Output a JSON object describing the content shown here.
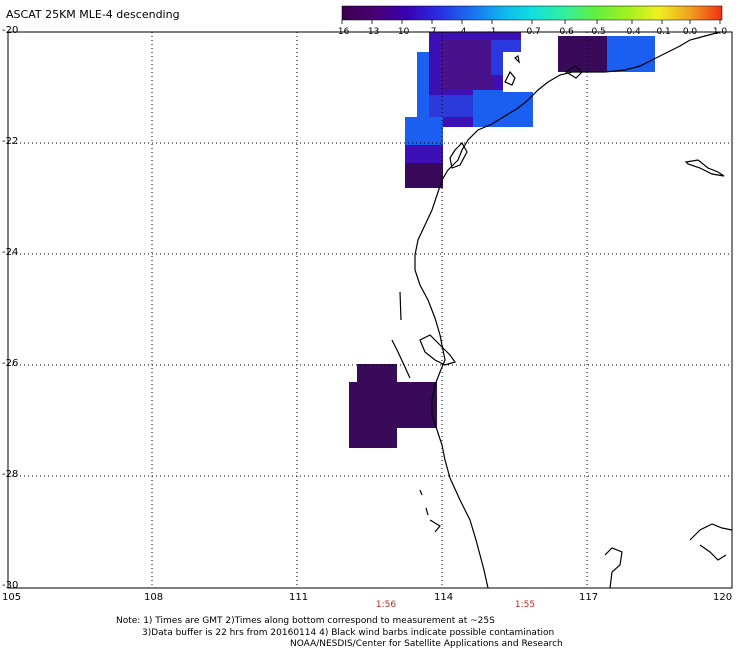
{
  "title": "ASCAT 25KM MLE-4 descending",
  "colorbar": {
    "labels": [
      "-16",
      "-13",
      "-10",
      "-7",
      "-4",
      "-1",
      "-0.7",
      "-0.6",
      "-0.5",
      "-0.4",
      "-0.1",
      "0.0",
      "1.0"
    ],
    "colors": [
      "#3a0050",
      "#4a0070",
      "#3800b0",
      "#2a2ae0",
      "#1a6af0",
      "#10b0f0",
      "#10e0e0",
      "#30f0a0",
      "#60f040",
      "#a0f020",
      "#f0f020",
      "#f0a020",
      "#f03010"
    ]
  },
  "axes": {
    "x_ticks": [
      "105",
      "108",
      "111",
      "114",
      "117",
      "120"
    ],
    "y_ticks": [
      "-20",
      "-22",
      "-24",
      "-26",
      "-28",
      "-30"
    ]
  },
  "times": [
    "1:56",
    "1:55"
  ],
  "notes": {
    "line1": "Note: 1) Times are GMT 2)Times along bottom correspond to measurement at ~25S",
    "line2": "3)Data buffer is 22 hrs from 20160114 4) Black wind barbs indicate possible contamination",
    "line3": "NOAA/NESDIS/Center for Satellite Applications and Research"
  },
  "colors": {
    "deep_purple": "#3a0a5a",
    "indigo": "#3d10b5",
    "blue": "#1a5ff0",
    "coast": "#000000",
    "time_label": "#c0281e"
  }
}
